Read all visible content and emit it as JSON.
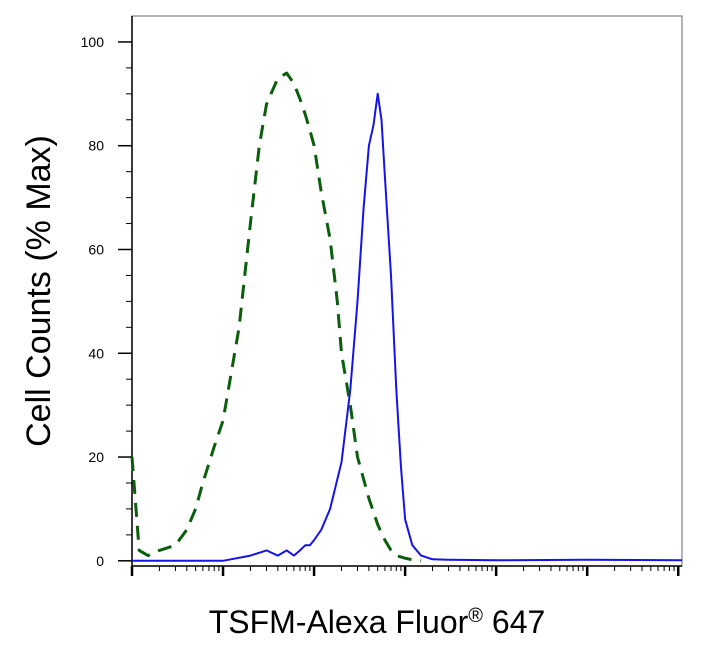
{
  "chart_data": {
    "type": "line",
    "title": "",
    "xlabel": "TSFM-Alexa Fluor",
    "xlabel_superscript": "®",
    "xlabel_suffix": " 647",
    "ylabel": "Cell Counts (% Max)",
    "x_scale": "log",
    "xlim": [
      1,
      1100000
    ],
    "ylim": [
      -1,
      105
    ],
    "y_ticks": [
      0,
      20,
      40,
      60,
      80,
      100
    ],
    "x_tick_labels_shown": false,
    "grid": false,
    "legend": "none",
    "series": [
      {
        "style": "dashed",
        "color": "#0b5e0b",
        "x": [
          1,
          1.2,
          1.5,
          2,
          3,
          4,
          5,
          6,
          8,
          10,
          15,
          20,
          25,
          30,
          40,
          50,
          60,
          70,
          80,
          90,
          100,
          120,
          150,
          180,
          200,
          250,
          300,
          400,
          500,
          600,
          700,
          800,
          1000,
          1200,
          1500
        ],
        "y": [
          20,
          2,
          1,
          2,
          3,
          6,
          10,
          15,
          22,
          27,
          45,
          65,
          80,
          88,
          93,
          94,
          92,
          89,
          86,
          83,
          80,
          71,
          62,
          50,
          40,
          30,
          20,
          12,
          7,
          4,
          2,
          1,
          0.5,
          0.2,
          0
        ]
      },
      {
        "style": "solid",
        "color": "#1414e6",
        "x": [
          1,
          5,
          10,
          20,
          30,
          40,
          50,
          60,
          70,
          80,
          90,
          100,
          120,
          150,
          200,
          250,
          300,
          350,
          400,
          450,
          500,
          550,
          600,
          700,
          800,
          900,
          1000,
          1200,
          1500,
          2000,
          3000,
          10000,
          100000,
          1100000
        ],
        "y": [
          0,
          0,
          0,
          1,
          2,
          1,
          2,
          1,
          2,
          3,
          3,
          4,
          6,
          10,
          19,
          33,
          50,
          68,
          80,
          84,
          90,
          85,
          74,
          55,
          33,
          18,
          8,
          3,
          1,
          0.3,
          0.2,
          0.1,
          0.2,
          0.1
        ]
      }
    ]
  }
}
